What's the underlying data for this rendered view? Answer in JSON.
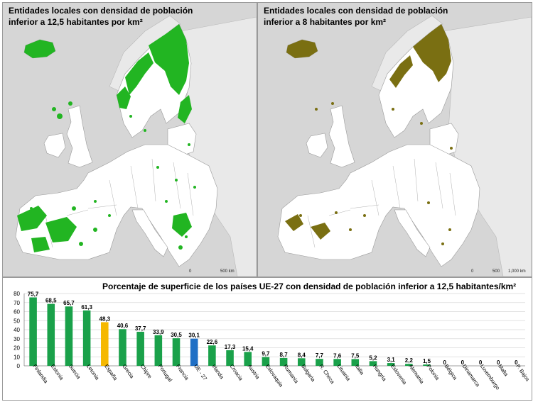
{
  "maps": {
    "left": {
      "title": "Entidades locales  con densidad de población\ninferior a 12,5 habitantes por km²",
      "threshold": 12.5,
      "fill_color": "#22b522",
      "scale": [
        "0",
        "500 km"
      ]
    },
    "right": {
      "title": "Entidades locales  con densidad de población\ninferior a 8 habitantes por km²",
      "threshold": 8,
      "fill_color": "#7a6f12",
      "scale": [
        "0",
        "500",
        "1,000 km"
      ]
    },
    "land_color": "#ffffff",
    "sea_color": "#d6d6d6",
    "non_eu_color": "#e9e9e9"
  },
  "chart_data": {
    "type": "bar",
    "title": "Porcentaje de superficie de los países UE-27 con densidad de población inferior a 12,5 habitantes/km²",
    "xlabel": "",
    "ylabel": "",
    "ylim": [
      0,
      80
    ],
    "yticks": [
      0,
      10,
      20,
      30,
      40,
      50,
      60,
      70,
      80
    ],
    "grid": true,
    "legend": "none",
    "categories": [
      "Finlandia",
      "Estonia",
      "Suecia",
      "Letonia",
      "España",
      "Grecia",
      "Chipre",
      "Portugal",
      "Francia",
      "UE - 27",
      "Irlanda",
      "Croacia",
      "Austria",
      "Eslovaquia",
      "Rumanía",
      "Bulgaria",
      "R. Checa",
      "Lituania",
      "Italia",
      "Hungría",
      "Eslovenia",
      "Alemania",
      "Polonia",
      "Bélgica",
      "Dinamarca",
      "Luxemburgo",
      "Malta",
      "P. Bajos"
    ],
    "values": [
      75.7,
      68.5,
      65.7,
      61.3,
      48.3,
      40.6,
      37.7,
      33.9,
      30.5,
      30.1,
      22.6,
      17.3,
      15.4,
      9.7,
      8.7,
      8.4,
      7.7,
      7.6,
      7.5,
      5.2,
      3.1,
      2.2,
      1.5,
      0,
      0,
      0,
      0,
      0
    ],
    "value_labels": [
      "75,7",
      "68,5",
      "65,7",
      "61,3",
      "48,3",
      "40,6",
      "37,7",
      "33,9",
      "30,5",
      "30,1",
      "22,6",
      "17,3",
      "15,4",
      "9,7",
      "8,7",
      "8,4",
      "7,7",
      "7,6",
      "7,5",
      "5,2",
      "3,1",
      "2,2",
      "1,5",
      "0",
      "0",
      "0",
      "0",
      "0"
    ],
    "colors": {
      "default": "#1aa14a",
      "España": "#f5b800",
      "UE - 27": "#1f6fc5"
    }
  }
}
